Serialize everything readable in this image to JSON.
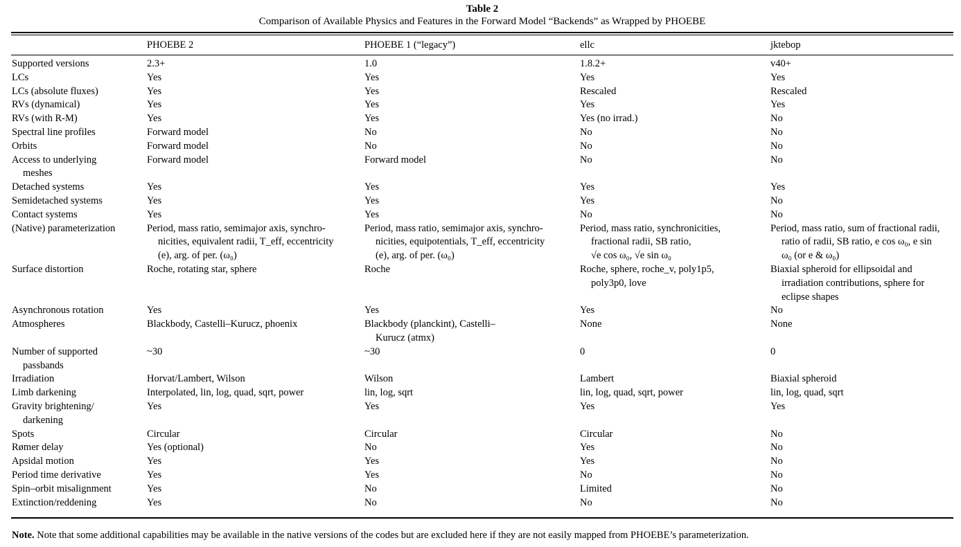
{
  "table": {
    "label": "Table 2",
    "title": "Comparison of Available Physics and Features in the Forward Model “Backends” as Wrapped by PHOEBE",
    "columns": [
      "",
      "PHOEBE 2",
      "PHOEBE 1 (“legacy”)",
      "ellc",
      "jktebop"
    ],
    "rows": [
      {
        "lines": 1,
        "cells": [
          [
            "Supported versions"
          ],
          [
            "2.3+"
          ],
          [
            "1.0"
          ],
          [
            "1.8.2+"
          ],
          [
            "v40+"
          ]
        ]
      },
      {
        "lines": 1,
        "cells": [
          [
            "LCs"
          ],
          [
            "Yes"
          ],
          [
            "Yes"
          ],
          [
            "Yes"
          ],
          [
            "Yes"
          ]
        ]
      },
      {
        "lines": 1,
        "cells": [
          [
            "LCs (absolute fluxes)"
          ],
          [
            "Yes"
          ],
          [
            "Yes"
          ],
          [
            "Rescaled"
          ],
          [
            "Rescaled"
          ]
        ]
      },
      {
        "lines": 1,
        "cells": [
          [
            "RVs (dynamical)"
          ],
          [
            "Yes"
          ],
          [
            "Yes"
          ],
          [
            "Yes"
          ],
          [
            "Yes"
          ]
        ]
      },
      {
        "lines": 1,
        "cells": [
          [
            "RVs (with R-M)"
          ],
          [
            "Yes"
          ],
          [
            "Yes"
          ],
          [
            "Yes (no irrad.)"
          ],
          [
            "No"
          ]
        ]
      },
      {
        "lines": 1,
        "cells": [
          [
            "Spectral line profiles"
          ],
          [
            "Forward model"
          ],
          [
            "No"
          ],
          [
            "No"
          ],
          [
            "No"
          ]
        ]
      },
      {
        "lines": 1,
        "cells": [
          [
            "Orbits"
          ],
          [
            "Forward model"
          ],
          [
            "No"
          ],
          [
            "No"
          ],
          [
            "No"
          ]
        ]
      },
      {
        "lines": 2,
        "cells": [
          [
            "Access to underlying",
            "meshes"
          ],
          [
            "Forward model"
          ],
          [
            "Forward model"
          ],
          [
            "No"
          ],
          [
            "No"
          ]
        ]
      },
      {
        "lines": 1,
        "cells": [
          [
            "Detached systems"
          ],
          [
            "Yes"
          ],
          [
            "Yes"
          ],
          [
            "Yes"
          ],
          [
            "Yes"
          ]
        ]
      },
      {
        "lines": 1,
        "cells": [
          [
            "Semidetached systems"
          ],
          [
            "Yes"
          ],
          [
            "Yes"
          ],
          [
            "Yes"
          ],
          [
            "No"
          ]
        ]
      },
      {
        "lines": 1,
        "cells": [
          [
            "Contact systems"
          ],
          [
            "Yes"
          ],
          [
            "Yes"
          ],
          [
            "No"
          ],
          [
            "No"
          ]
        ]
      },
      {
        "lines": 3,
        "cells": [
          [
            "(Native) parameterization"
          ],
          [
            "Period, mass ratio, semimajor axis, synchro-",
            "nicities, equivalent radii, T_eff, eccentricity",
            "(e), arg. of per. (ω₀)"
          ],
          [
            "Period, mass ratio, semimajor axis, synchro-",
            "nicities, equipotentials, T_eff, eccentricity",
            "(e), arg. of per. (ω₀)"
          ],
          [
            "Period, mass ratio, synchronicities,",
            "fractional radii, SB ratio,",
            "√e cos ω₀, √e sin ω₀"
          ],
          [
            "Period, mass ratio, sum of fractional radii,",
            "ratio of radii, SB ratio, e cos ω₀, e sin",
            "ω₀ (or e & ω₀)"
          ]
        ]
      },
      {
        "lines": 3,
        "cells": [
          [
            "Surface distortion"
          ],
          [
            "Roche, rotating star, sphere"
          ],
          [
            "Roche"
          ],
          [
            "Roche, sphere, roche_v, poly1p5,",
            "poly3p0, love"
          ],
          [
            "Biaxial spheroid for ellipsoidal and",
            "irradiation contributions, sphere for",
            "eclipse shapes"
          ]
        ]
      },
      {
        "lines": 1,
        "cells": [
          [
            "Asynchronous rotation"
          ],
          [
            "Yes"
          ],
          [
            "Yes"
          ],
          [
            "Yes"
          ],
          [
            "No"
          ]
        ]
      },
      {
        "lines": 2,
        "cells": [
          [
            "Atmospheres"
          ],
          [
            "Blackbody, Castelli–Kurucz, phoenix"
          ],
          [
            "Blackbody (planckint), Castelli–",
            "Kurucz (atmx)"
          ],
          [
            "None"
          ],
          [
            "None"
          ]
        ]
      },
      {
        "lines": 2,
        "cells": [
          [
            "Number of supported",
            "passbands"
          ],
          [
            "~30"
          ],
          [
            "~30"
          ],
          [
            "0"
          ],
          [
            "0"
          ]
        ]
      },
      {
        "lines": 1,
        "cells": [
          [
            "Irradiation"
          ],
          [
            "Horvat/Lambert, Wilson"
          ],
          [
            "Wilson"
          ],
          [
            "Lambert"
          ],
          [
            "Biaxial spheroid"
          ]
        ]
      },
      {
        "lines": 1,
        "cells": [
          [
            "Limb darkening"
          ],
          [
            "Interpolated, lin, log, quad, sqrt, power"
          ],
          [
            "lin, log, sqrt"
          ],
          [
            "lin, log, quad, sqrt, power"
          ],
          [
            "lin, log, quad, sqrt"
          ]
        ]
      },
      {
        "lines": 2,
        "cells": [
          [
            "Gravity brightening/",
            "darkening"
          ],
          [
            "Yes"
          ],
          [
            "Yes"
          ],
          [
            "Yes"
          ],
          [
            "Yes"
          ]
        ]
      },
      {
        "lines": 1,
        "cells": [
          [
            "Spots"
          ],
          [
            "Circular"
          ],
          [
            "Circular"
          ],
          [
            "Circular"
          ],
          [
            "No"
          ]
        ]
      },
      {
        "lines": 1,
        "cells": [
          [
            "Rømer delay"
          ],
          [
            "Yes (optional)"
          ],
          [
            "No"
          ],
          [
            "Yes"
          ],
          [
            "No"
          ]
        ]
      },
      {
        "lines": 1,
        "cells": [
          [
            "Apsidal motion"
          ],
          [
            "Yes"
          ],
          [
            "Yes"
          ],
          [
            "Yes"
          ],
          [
            "No"
          ]
        ]
      },
      {
        "lines": 1,
        "cells": [
          [
            "Period time derivative"
          ],
          [
            "Yes"
          ],
          [
            "Yes"
          ],
          [
            "No"
          ],
          [
            "No"
          ]
        ]
      },
      {
        "lines": 1,
        "cells": [
          [
            "Spin–orbit misalignment"
          ],
          [
            "Yes"
          ],
          [
            "No"
          ],
          [
            "Limited"
          ],
          [
            "No"
          ]
        ]
      },
      {
        "lines": 1,
        "cells": [
          [
            "Extinction/reddening"
          ],
          [
            "Yes"
          ],
          [
            "No"
          ],
          [
            "No"
          ],
          [
            "No"
          ]
        ]
      }
    ],
    "note_label": "Note.",
    "note_text": " Note that some additional capabilities may be available in the native versions of the codes but are excluded here if they are not easily mapped from PHOEBE’s parameterization."
  }
}
